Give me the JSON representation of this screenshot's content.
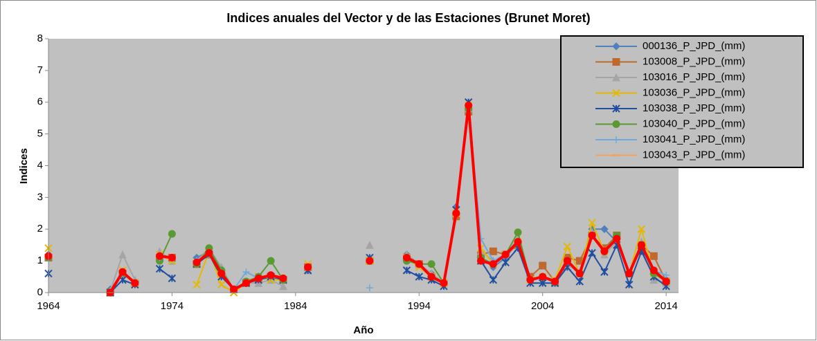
{
  "chart_data": {
    "type": "line",
    "title": "Indices anuales del Vector y de las Estaciones (Brunet Moret)",
    "x_label": "Año",
    "y_label": "Indices",
    "x": [
      1964,
      1966,
      1969,
      1970,
      1971,
      1972,
      1973,
      1974,
      1975,
      1976,
      1977,
      1978,
      1979,
      1980,
      1981,
      1982,
      1983,
      1984,
      1985,
      1986,
      1990,
      1991,
      1993,
      1994,
      1995,
      1996,
      1997,
      1998,
      1999,
      2000,
      2001,
      2002,
      2003,
      2004,
      2005,
      2006,
      2007,
      2008,
      2009,
      2010,
      2011,
      2012,
      2013,
      2014
    ],
    "xlim": [
      1964,
      2015
    ],
    "xticks": [
      1964,
      1974,
      1984,
      1994,
      2004,
      2014
    ],
    "ylim": [
      0,
      8
    ],
    "yticks": [
      0,
      1,
      2,
      3,
      4,
      5,
      6,
      7,
      8
    ],
    "grid": false,
    "legend": "top-right",
    "series": [
      {
        "name": "000136_P_JPD_(mm)",
        "color": "#4f81bd",
        "marker": "diamond",
        "values": [
          1.2,
          null,
          0.1,
          0.6,
          0.3,
          null,
          1.2,
          1.0,
          null,
          1.1,
          1.3,
          0.7,
          0.1,
          0.3,
          0.5,
          0.5,
          0.4,
          null,
          0.8,
          null,
          1.0,
          null,
          1.2,
          0.9,
          0.6,
          0.3,
          2.7,
          5.8,
          1.1,
          0.8,
          1.1,
          1.6,
          0.4,
          0.5,
          0.3,
          1.0,
          0.6,
          2.0,
          2.0,
          1.6,
          0.6,
          1.4,
          0.6,
          0.4
        ]
      },
      {
        "name": "103008_P_JPD_(mm)",
        "color": "#c0692e",
        "marker": "square",
        "values": [
          1.1,
          null,
          0.0,
          0.6,
          0.3,
          null,
          1.1,
          1.1,
          null,
          0.9,
          1.2,
          0.6,
          0.1,
          0.3,
          0.4,
          0.5,
          0.4,
          null,
          0.8,
          null,
          1.0,
          null,
          1.1,
          0.9,
          0.5,
          0.3,
          2.4,
          5.7,
          1.2,
          1.3,
          1.2,
          1.5,
          0.5,
          0.85,
          0.35,
          1.1,
          1.0,
          1.8,
          1.4,
          1.8,
          0.6,
          1.5,
          1.15,
          0.35
        ]
      },
      {
        "name": "103016_P_JPD_(mm)",
        "color": "#a5a5a5",
        "marker": "triangle",
        "values": [
          1.2,
          null,
          0.05,
          1.2,
          0.4,
          null,
          1.3,
          1.0,
          null,
          1.0,
          1.4,
          0.8,
          0.1,
          0.3,
          0.3,
          0.4,
          0.2,
          null,
          0.7,
          null,
          1.5,
          null,
          1.2,
          0.9,
          0.6,
          0.3,
          2.6,
          5.8,
          1.3,
          1.0,
          1.2,
          1.7,
          0.4,
          0.5,
          0.3,
          0.9,
          0.6,
          1.9,
          1.2,
          1.6,
          0.6,
          1.6,
          0.4,
          0.3
        ]
      },
      {
        "name": "103036_P_JPD_(mm)",
        "color": "#e6b800",
        "marker": "x",
        "values": [
          1.4,
          null,
          0.0,
          0.7,
          0.3,
          null,
          1.2,
          1.0,
          null,
          0.25,
          1.3,
          0.25,
          0.0,
          0.3,
          0.5,
          0.4,
          0.4,
          null,
          0.9,
          null,
          1.0,
          null,
          1.1,
          0.8,
          0.5,
          0.3,
          2.5,
          5.9,
          1.4,
          0.9,
          1.2,
          1.6,
          0.4,
          0.5,
          0.4,
          1.45,
          0.6,
          2.2,
          1.3,
          1.7,
          0.6,
          2.0,
          0.6,
          0.35
        ]
      },
      {
        "name": "103038_P_JPD_(mm)",
        "color": "#1f4e9f",
        "marker": "star",
        "values": [
          0.6,
          null,
          0.0,
          0.4,
          0.25,
          null,
          0.75,
          0.45,
          null,
          0.9,
          1.2,
          0.5,
          0.1,
          0.3,
          0.4,
          0.5,
          0.4,
          null,
          0.7,
          null,
          1.1,
          null,
          0.7,
          0.5,
          0.4,
          0.2,
          2.6,
          6.0,
          1.0,
          0.4,
          0.95,
          1.4,
          0.3,
          0.3,
          0.3,
          0.8,
          0.35,
          1.25,
          0.65,
          1.5,
          0.25,
          1.3,
          0.5,
          0.2
        ]
      },
      {
        "name": "103040_P_JPD_(mm)",
        "color": "#5b9a32",
        "marker": "circle",
        "values": [
          1.1,
          null,
          0.0,
          0.6,
          0.3,
          null,
          1.0,
          1.85,
          null,
          0.9,
          1.4,
          0.7,
          0.1,
          0.35,
          0.5,
          1.0,
          0.4,
          null,
          0.8,
          null,
          1.0,
          null,
          1.0,
          0.9,
          0.9,
          0.3,
          2.5,
          5.8,
          1.1,
          0.9,
          1.2,
          1.9,
          0.4,
          0.5,
          0.35,
          1.0,
          0.6,
          1.8,
          1.3,
          1.8,
          0.6,
          1.5,
          0.6,
          0.35
        ]
      },
      {
        "name": "103041_P_JPD_(mm)",
        "color": "#6fa8dc",
        "marker": "plus",
        "values": [
          1.1,
          null,
          0.0,
          0.6,
          0.3,
          null,
          1.1,
          1.1,
          null,
          1.0,
          1.2,
          0.6,
          0.1,
          0.65,
          0.45,
          0.5,
          0.45,
          null,
          0.8,
          null,
          0.15,
          null,
          1.1,
          0.9,
          0.5,
          0.3,
          2.5,
          5.9,
          1.7,
          1.0,
          1.2,
          1.6,
          0.4,
          0.5,
          0.35,
          1.0,
          0.6,
          1.8,
          1.3,
          1.7,
          0.6,
          1.5,
          0.7,
          0.55
        ]
      },
      {
        "name": "103043_P_JPD_(mm)",
        "color": "#f4a261",
        "marker": "dash",
        "values": [
          1.15,
          null,
          0.0,
          0.65,
          0.3,
          null,
          1.15,
          1.1,
          null,
          0.95,
          1.25,
          0.6,
          0.1,
          0.3,
          0.45,
          0.55,
          0.45,
          null,
          0.8,
          null,
          1.0,
          null,
          1.1,
          0.9,
          0.5,
          0.3,
          2.5,
          5.9,
          1.0,
          0.9,
          1.2,
          1.6,
          0.4,
          0.5,
          0.35,
          1.0,
          0.6,
          1.8,
          1.3,
          1.7,
          0.6,
          1.5,
          0.7,
          0.35
        ]
      },
      {
        "color": "#ff0000",
        "marker": "circle",
        "width": 4,
        "values": [
          1.15,
          null,
          0.0,
          0.65,
          0.3,
          null,
          1.15,
          1.1,
          null,
          0.95,
          1.25,
          0.6,
          0.1,
          0.3,
          0.45,
          0.55,
          0.45,
          null,
          0.8,
          null,
          1.0,
          null,
          1.1,
          0.9,
          0.5,
          0.3,
          2.5,
          5.9,
          1.0,
          0.9,
          1.2,
          1.6,
          0.4,
          0.5,
          0.35,
          1.0,
          0.6,
          1.8,
          1.3,
          1.7,
          0.6,
          1.5,
          0.7,
          0.35
        ]
      }
    ]
  }
}
